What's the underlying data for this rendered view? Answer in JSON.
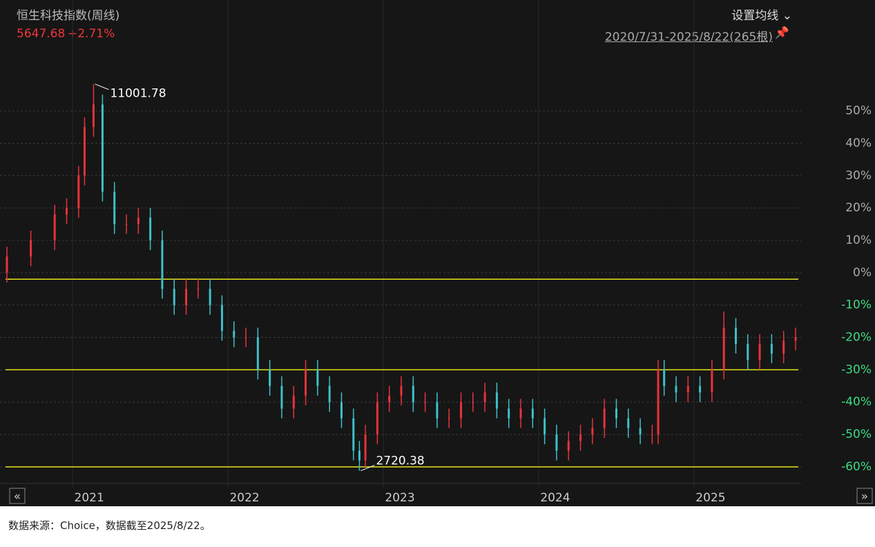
{
  "header": {
    "title": "恒生科技指数(周线)",
    "price": "5647.68",
    "change": "+2.71%",
    "ma_button": "设置均线",
    "range": "2020/7/31-2025/8/22(265根)"
  },
  "chart_data": {
    "type": "candlestick",
    "x": [
      0,
      8,
      16,
      20,
      24,
      26,
      29,
      32,
      36,
      40,
      44,
      48,
      52,
      56,
      60,
      64,
      68,
      72,
      76,
      80,
      84,
      88,
      92,
      96,
      100,
      104,
      108,
      112,
      116,
      118,
      120,
      124,
      128,
      132,
      136,
      140,
      144,
      148,
      152,
      156,
      160,
      164,
      168,
      172,
      176,
      180,
      184,
      188,
      192,
      196,
      200,
      204,
      208,
      212,
      216,
      218,
      220,
      224,
      228,
      232,
      236,
      240,
      244,
      248,
      252,
      256,
      260,
      264
    ],
    "open": [
      0,
      5,
      10,
      18,
      20,
      30,
      45,
      52,
      25,
      15,
      15,
      17,
      10,
      -5,
      -10,
      -5,
      -5,
      -10,
      -18,
      -20,
      -20,
      -30,
      -35,
      -42,
      -38,
      -30,
      -35,
      -40,
      -45,
      -55,
      -58,
      -50,
      -40,
      -38,
      -35,
      -40,
      -40,
      -45,
      -45,
      -40,
      -40,
      -37,
      -42,
      -45,
      -42,
      -45,
      -50,
      -55,
      -52,
      -50,
      -48,
      -42,
      -45,
      -48,
      -50,
      -50,
      -30,
      -35,
      -37,
      -35,
      -37,
      -30,
      -17,
      -22,
      -27,
      -22,
      -25,
      -21
    ],
    "high": [
      8,
      13,
      21,
      23,
      33,
      48,
      58.3,
      55,
      28,
      18,
      20,
      20,
      13,
      -2,
      -2,
      -2,
      -2,
      -7,
      -15,
      -17,
      -17,
      -27,
      -32,
      -35,
      -27,
      -27,
      -32,
      -37,
      -42,
      -52,
      -47,
      -37,
      -35,
      -32,
      -32,
      -37,
      -37,
      -42,
      -37,
      -37,
      -34,
      -34,
      -39,
      -39,
      -39,
      -42,
      -47,
      -49,
      -47,
      -45,
      -39,
      -39,
      -42,
      -45,
      -47,
      -27,
      -27,
      -32,
      -32,
      -32,
      -27,
      -12,
      -14,
      -19,
      -19,
      -19,
      -18,
      -17
    ],
    "low": [
      -3,
      2,
      7,
      15,
      17,
      27,
      42,
      22,
      12,
      12,
      12,
      7,
      -8,
      -13,
      -13,
      -8,
      -13,
      -21,
      -23,
      -23,
      -33,
      -38,
      -45,
      -45,
      -41,
      -38,
      -43,
      -48,
      -58,
      -61.2,
      -60,
      -53,
      -43,
      -41,
      -43,
      -43,
      -48,
      -48,
      -48,
      -43,
      -43,
      -45,
      -48,
      -48,
      -48,
      -53,
      -58,
      -58,
      -55,
      -53,
      -51,
      -48,
      -51,
      -53,
      -53,
      -53,
      -38,
      -40,
      -40,
      -40,
      -40,
      -33,
      -25,
      -30,
      -30,
      -28,
      -28,
      -24
    ],
    "close": [
      5,
      10,
      18,
      20,
      30,
      45,
      52,
      25,
      15,
      15,
      17,
      10,
      -5,
      -10,
      -5,
      -5,
      -10,
      -18,
      -20,
      -20,
      -30,
      -35,
      -42,
      -38,
      -30,
      -35,
      -40,
      -45,
      -55,
      -58,
      -50,
      -40,
      -38,
      -35,
      -40,
      -40,
      -45,
      -45,
      -40,
      -40,
      -37,
      -42,
      -45,
      -42,
      -45,
      -50,
      -55,
      -52,
      -50,
      -48,
      -42,
      -45,
      -48,
      -50,
      -50,
      -30,
      -35,
      -37,
      -35,
      -37,
      -30,
      -17,
      -22,
      -27,
      -22,
      -25,
      -21,
      -20
    ],
    "up_color": "#e8333a",
    "down_color": "#3ec1c9",
    "xlim": [
      0,
      265
    ],
    "xticks": [
      {
        "value": 22,
        "label": "2021"
      },
      {
        "value": 74,
        "label": "2022"
      },
      {
        "value": 126,
        "label": "2023"
      },
      {
        "value": 178,
        "label": "2024"
      },
      {
        "value": 230,
        "label": "2025"
      }
    ],
    "ylim": [
      -63,
      64
    ],
    "yticks": [
      {
        "value": 50,
        "label": "50%"
      },
      {
        "value": 40,
        "label": "40%"
      },
      {
        "value": 30,
        "label": "30%"
      },
      {
        "value": 20,
        "label": "20%"
      },
      {
        "value": 10,
        "label": "10%"
      },
      {
        "value": 0,
        "label": "0%"
      },
      {
        "value": -10,
        "label": "-10%"
      },
      {
        "value": -20,
        "label": "-20%"
      },
      {
        "value": -30,
        "label": "-30%"
      },
      {
        "value": -40,
        "label": "-40%"
      },
      {
        "value": -50,
        "label": "-50%"
      },
      {
        "value": -60,
        "label": "-60%"
      }
    ],
    "grid": true,
    "reference_lines": [
      -2,
      -30,
      -60
    ],
    "reference_color": "#e6e619",
    "max_label": "11001.78",
    "min_label": "2720.38"
  },
  "footer": "数据来源：Choice，数据截至2025/8/22。"
}
